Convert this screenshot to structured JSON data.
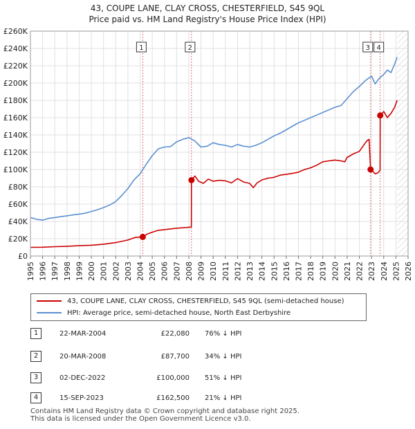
{
  "chart_data": {
    "type": "line",
    "title": "43, COUPE LANE, CLAY CROSS, CHESTERFIELD, S45 9QL",
    "subtitle": "Price paid vs. HM Land Registry's House Price Index (HPI)",
    "xlabel": "",
    "ylabel": "",
    "xlim": [
      1995,
      2026
    ],
    "ylim": [
      0,
      260000
    ],
    "x_ticks": [
      "1995",
      "1996",
      "1997",
      "1998",
      "1999",
      "2000",
      "2001",
      "2002",
      "2003",
      "2004",
      "2005",
      "2006",
      "2007",
      "2008",
      "2009",
      "2010",
      "2011",
      "2012",
      "2013",
      "2014",
      "2015",
      "2016",
      "2017",
      "2018",
      "2019",
      "2020",
      "2021",
      "2022",
      "2023",
      "2024",
      "2025",
      "2026"
    ],
    "y_ticks": [
      {
        "value": 0,
        "label": "£0"
      },
      {
        "value": 20000,
        "label": "£20K"
      },
      {
        "value": 40000,
        "label": "£40K"
      },
      {
        "value": 60000,
        "label": "£60K"
      },
      {
        "value": 80000,
        "label": "£80K"
      },
      {
        "value": 100000,
        "label": "£100K"
      },
      {
        "value": 120000,
        "label": "£120K"
      },
      {
        "value": 140000,
        "label": "£140K"
      },
      {
        "value": 160000,
        "label": "£160K"
      },
      {
        "value": 180000,
        "label": "£180K"
      },
      {
        "value": 200000,
        "label": "£200K"
      },
      {
        "value": 220000,
        "label": "£220K"
      },
      {
        "value": 240000,
        "label": "£240K"
      },
      {
        "value": 260000,
        "label": "£260K"
      }
    ],
    "grid": true,
    "forecast_from": 2025.1,
    "series": [
      {
        "name": "43, COUPE LANE, CLAY CROSS, CHESTERFIELD, S45 9QL (semi-detached house)",
        "color": "#cc0000",
        "points": [
          [
            1995.0,
            10000
          ],
          [
            1996.0,
            10200
          ],
          [
            1997.0,
            10800
          ],
          [
            1998.0,
            11300
          ],
          [
            1999.0,
            11900
          ],
          [
            2000.0,
            12500
          ],
          [
            2001.0,
            13700
          ],
          [
            2002.0,
            15500
          ],
          [
            2003.0,
            18500
          ],
          [
            2003.6,
            21500
          ],
          [
            2004.22,
            22080
          ],
          [
            2004.6,
            25500
          ],
          [
            2005.0,
            27500
          ],
          [
            2005.5,
            29800
          ],
          [
            2006.0,
            30500
          ],
          [
            2007.0,
            32200
          ],
          [
            2007.8,
            33000
          ],
          [
            2008.21,
            33500
          ],
          [
            2008.22,
            87700
          ],
          [
            2008.5,
            92500
          ],
          [
            2008.8,
            86500
          ],
          [
            2009.2,
            84000
          ],
          [
            2009.6,
            89000
          ],
          [
            2010.0,
            86500
          ],
          [
            2010.5,
            87500
          ],
          [
            2011.0,
            87000
          ],
          [
            2011.5,
            84500
          ],
          [
            2012.0,
            89500
          ],
          [
            2012.5,
            85500
          ],
          [
            2013.0,
            84000
          ],
          [
            2013.3,
            79000
          ],
          [
            2013.6,
            84500
          ],
          [
            2014.0,
            88000
          ],
          [
            2014.5,
            90000
          ],
          [
            2015.0,
            91000
          ],
          [
            2015.5,
            93500
          ],
          [
            2016.0,
            94500
          ],
          [
            2016.5,
            95500
          ],
          [
            2017.0,
            97000
          ],
          [
            2017.5,
            100000
          ],
          [
            2018.0,
            102000
          ],
          [
            2018.5,
            105000
          ],
          [
            2019.0,
            109000
          ],
          [
            2019.5,
            110000
          ],
          [
            2020.0,
            111000
          ],
          [
            2020.5,
            110000
          ],
          [
            2020.8,
            109000
          ],
          [
            2021.0,
            114000
          ],
          [
            2021.5,
            118000
          ],
          [
            2022.0,
            121000
          ],
          [
            2022.3,
            127000
          ],
          [
            2022.6,
            133000
          ],
          [
            2022.8,
            135000
          ],
          [
            2022.92,
            100000
          ],
          [
            2023.1,
            98000
          ],
          [
            2023.3,
            95000
          ],
          [
            2023.5,
            96000
          ],
          [
            2023.7,
            99000
          ],
          [
            2023.71,
            162500
          ],
          [
            2024.0,
            167000
          ],
          [
            2024.3,
            160000
          ],
          [
            2024.6,
            165000
          ],
          [
            2024.9,
            172000
          ],
          [
            2025.1,
            180000
          ]
        ]
      },
      {
        "name": "HPI: Average price, semi-detached house, North East Derbyshire",
        "color": "#5a8fd0",
        "points": [
          [
            1995.0,
            44500
          ],
          [
            1995.5,
            42500
          ],
          [
            1996.0,
            41500
          ],
          [
            1996.5,
            43500
          ],
          [
            1997.0,
            44500
          ],
          [
            1997.5,
            45500
          ],
          [
            1998.0,
            46500
          ],
          [
            1998.5,
            47500
          ],
          [
            1999.0,
            48500
          ],
          [
            1999.5,
            49500
          ],
          [
            2000.0,
            51500
          ],
          [
            2000.5,
            53500
          ],
          [
            2001.0,
            56000
          ],
          [
            2001.5,
            59000
          ],
          [
            2002.0,
            63000
          ],
          [
            2002.5,
            70000
          ],
          [
            2003.0,
            78000
          ],
          [
            2003.5,
            88000
          ],
          [
            2004.0,
            95000
          ],
          [
            2004.5,
            106000
          ],
          [
            2005.0,
            116000
          ],
          [
            2005.5,
            124000
          ],
          [
            2006.0,
            126000
          ],
          [
            2006.5,
            126500
          ],
          [
            2007.0,
            132000
          ],
          [
            2007.5,
            135000
          ],
          [
            2008.0,
            137000
          ],
          [
            2008.5,
            133000
          ],
          [
            2009.0,
            126000
          ],
          [
            2009.5,
            127000
          ],
          [
            2010.0,
            131000
          ],
          [
            2010.5,
            129000
          ],
          [
            2011.0,
            128000
          ],
          [
            2011.5,
            126000
          ],
          [
            2012.0,
            129000
          ],
          [
            2012.5,
            127000
          ],
          [
            2013.0,
            126000
          ],
          [
            2013.5,
            128000
          ],
          [
            2014.0,
            131000
          ],
          [
            2014.5,
            135000
          ],
          [
            2015.0,
            139000
          ],
          [
            2015.5,
            142000
          ],
          [
            2016.0,
            146000
          ],
          [
            2016.5,
            150000
          ],
          [
            2017.0,
            154000
          ],
          [
            2017.5,
            157000
          ],
          [
            2018.0,
            160000
          ],
          [
            2018.5,
            163000
          ],
          [
            2019.0,
            166000
          ],
          [
            2019.5,
            169000
          ],
          [
            2020.0,
            172000
          ],
          [
            2020.5,
            174000
          ],
          [
            2021.0,
            182000
          ],
          [
            2021.5,
            190000
          ],
          [
            2022.0,
            196000
          ],
          [
            2022.5,
            203000
          ],
          [
            2023.0,
            208000
          ],
          [
            2023.3,
            199000
          ],
          [
            2023.6,
            205000
          ],
          [
            2024.0,
            210000
          ],
          [
            2024.3,
            215000
          ],
          [
            2024.6,
            212000
          ],
          [
            2024.9,
            222000
          ],
          [
            2025.1,
            230000
          ]
        ]
      }
    ],
    "transactions": [
      {
        "num": "1",
        "x": 2004.22,
        "y": 22080,
        "date": "22-MAR-2004",
        "price": "£22,080",
        "hpi": "76% ↓ HPI"
      },
      {
        "num": "2",
        "x": 2008.22,
        "y": 87700,
        "date": "20-MAR-2008",
        "price": "£87,700",
        "hpi": "34% ↓ HPI"
      },
      {
        "num": "3",
        "x": 2022.92,
        "y": 100000,
        "date": "02-DEC-2022",
        "price": "£100,000",
        "hpi": "51% ↓ HPI"
      },
      {
        "num": "4",
        "x": 2023.71,
        "y": 162500,
        "date": "15-SEP-2023",
        "price": "£162,500",
        "hpi": "21% ↓ HPI"
      }
    ]
  },
  "legend": {
    "property_label": "43, COUPE LANE, CLAY CROSS, CHESTERFIELD, S45 9QL (semi-detached house)",
    "hpi_label": "HPI: Average price, semi-detached house, North East Derbyshire",
    "property_color": "#cc0000",
    "hpi_color": "#5a8fd0"
  },
  "footer": {
    "line1": "Contains HM Land Registry data © Crown copyright and database right 2025.",
    "line2": "This data is licensed under the Open Government Licence v3.0."
  }
}
